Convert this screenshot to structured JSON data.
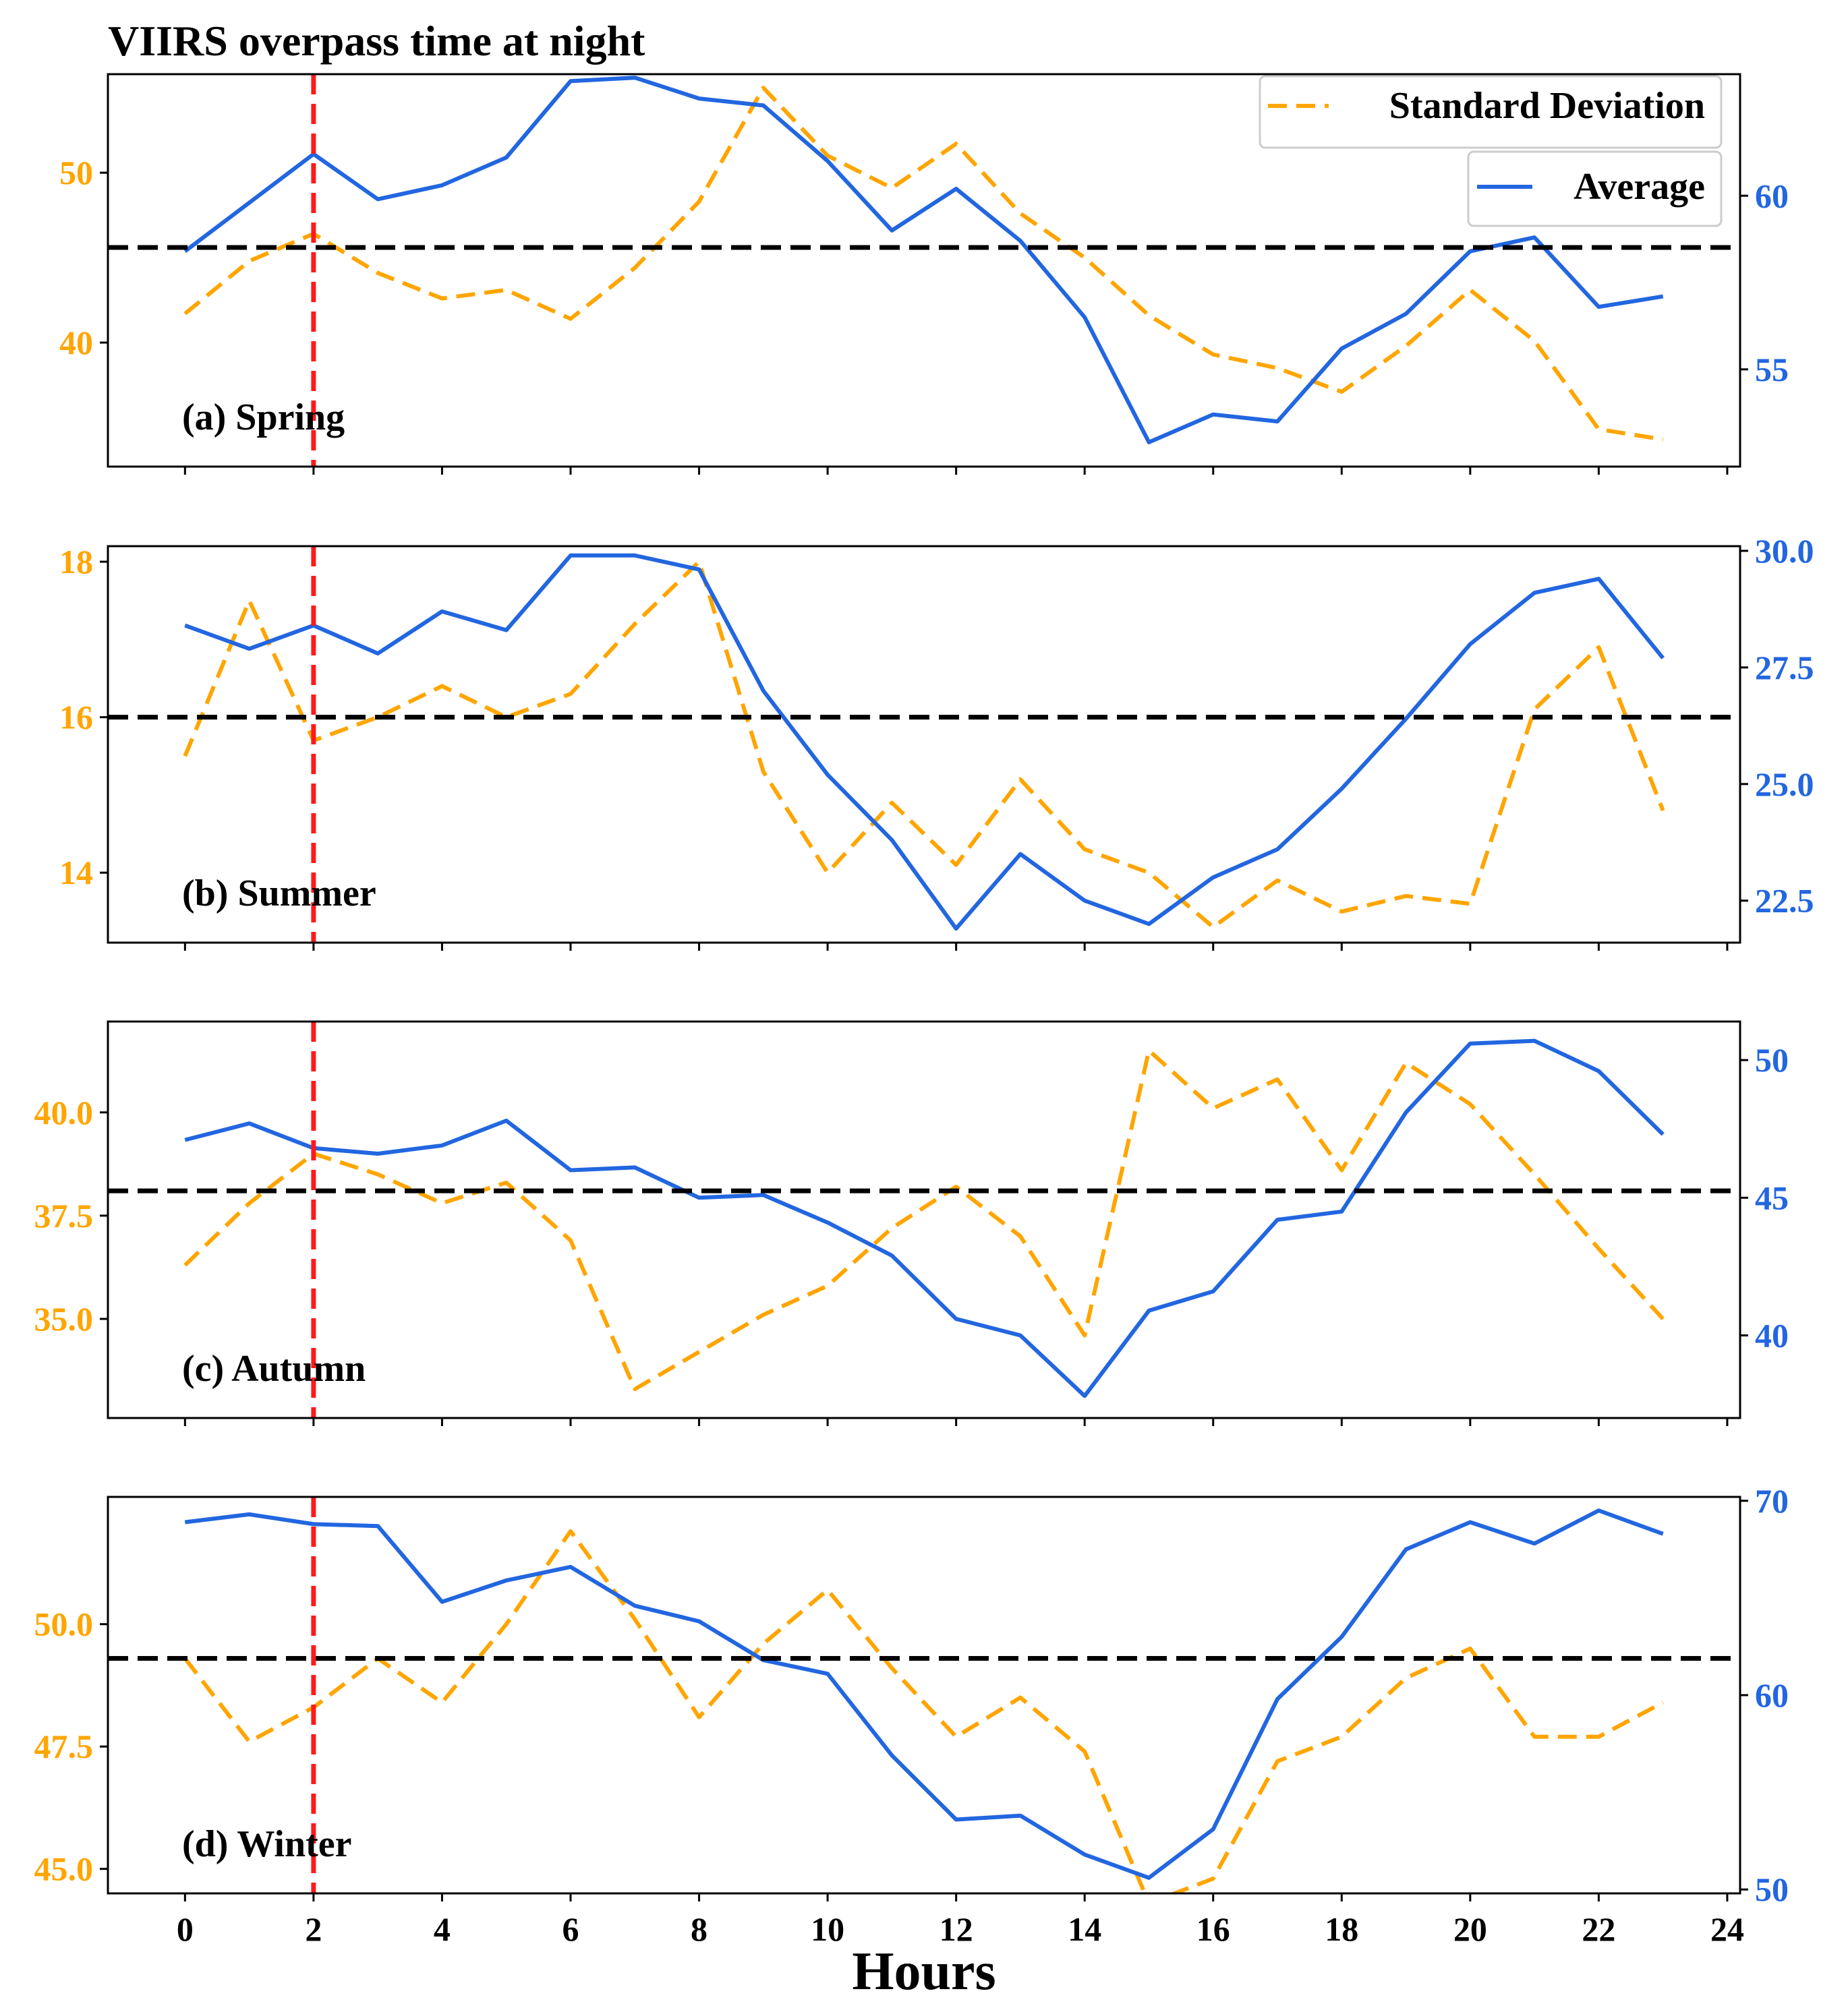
{
  "chart_data": {
    "type": "line",
    "title": "VIIRS overpass time at night",
    "xlabel": "Hours",
    "x": [
      0,
      1,
      2,
      3,
      4,
      5,
      6,
      7,
      8,
      9,
      10,
      11,
      12,
      13,
      14,
      15,
      16,
      17,
      18,
      19,
      20,
      21,
      22,
      23
    ],
    "x_ticks": [
      0,
      2,
      4,
      6,
      8,
      10,
      12,
      14,
      16,
      18,
      20,
      22,
      24
    ],
    "xlim": [
      -1.2,
      24.2
    ],
    "vertical_marker_x": 2,
    "colors": {
      "std": "#FFA500",
      "avg": "#2266E0",
      "overpass_marker": "#FF1A1A",
      "reference_line": "#000000"
    },
    "legend": {
      "placement": "top-right",
      "entries": [
        "Standard Deviation",
        "Average"
      ]
    },
    "panels": [
      {
        "label": "(a) Spring",
        "left_ylim": [
          32.7,
          55.8
        ],
        "right_ylim": [
          52.2,
          63.5
        ],
        "left_ticks": [
          40,
          50
        ],
        "right_ticks": [
          55,
          60
        ],
        "reference_y_left": 45.6,
        "series": [
          {
            "name": "Standard Deviation",
            "axis": "left",
            "style": "dashed",
            "values": [
              41.7,
              44.8,
              46.4,
              44.1,
              42.6,
              43.1,
              41.4,
              44.4,
              48.3,
              55.0,
              51.0,
              49.1,
              51.7,
              47.6,
              45.0,
              41.6,
              39.3,
              38.5,
              37.1,
              39.8,
              43.1,
              40.1,
              34.9,
              34.3
            ],
            "legend_label": "Standard Deviation"
          },
          {
            "name": "Average",
            "axis": "right",
            "style": "solid",
            "values": [
              58.4,
              59.8,
              61.2,
              59.9,
              60.3,
              61.1,
              63.3,
              63.4,
              62.8,
              62.6,
              61.0,
              59.0,
              60.2,
              58.7,
              56.5,
              52.9,
              53.7,
              53.5,
              55.6,
              56.6,
              58.4,
              58.8,
              56.8,
              57.1
            ],
            "legend_label": "Average"
          }
        ]
      },
      {
        "label": "(b) Summer",
        "left_ylim": [
          13.1,
          18.2
        ],
        "right_ylim": [
          21.6,
          30.1
        ],
        "left_ticks": [
          14,
          16,
          18
        ],
        "right_ticks": [
          22.5,
          25.0,
          27.5,
          30.0
        ],
        "right_tick_labels": [
          "22.5",
          "25.0",
          "27.5",
          "30.0"
        ],
        "reference_y_left": 16.0,
        "series": [
          {
            "name": "Standard Deviation",
            "axis": "left",
            "style": "dashed",
            "values": [
              15.5,
              17.5,
              15.7,
              16.0,
              16.4,
              16.0,
              16.3,
              17.2,
              18.0,
              15.3,
              14.0,
              14.9,
              14.1,
              15.2,
              14.3,
              14.0,
              13.3,
              13.9,
              13.5,
              13.7,
              13.6,
              16.1,
              16.9,
              14.8
            ],
            "legend_label": "Standard Deviation"
          },
          {
            "name": "Average",
            "axis": "right",
            "style": "solid",
            "values": [
              28.4,
              27.9,
              28.4,
              27.8,
              28.7,
              28.3,
              29.9,
              29.9,
              29.6,
              27.0,
              25.2,
              23.8,
              21.9,
              23.5,
              22.5,
              22.0,
              23.0,
              23.6,
              24.9,
              26.4,
              28.0,
              29.1,
              29.4,
              27.7
            ],
            "legend_label": "Average"
          }
        ]
      },
      {
        "label": "(c) Autumn",
        "left_ylim": [
          32.6,
          42.2
        ],
        "right_ylim": [
          37.0,
          51.4
        ],
        "left_ticks": [
          35.0,
          37.5,
          40.0
        ],
        "left_tick_labels": [
          "35.0",
          "37.5",
          "40.0"
        ],
        "right_ticks": [
          40,
          45,
          50
        ],
        "reference_y_left": 38.1,
        "series": [
          {
            "name": "Standard Deviation",
            "axis": "left",
            "style": "dashed",
            "values": [
              36.3,
              37.8,
              39.0,
              38.5,
              37.8,
              38.3,
              36.9,
              33.3,
              34.2,
              35.1,
              35.8,
              37.2,
              38.2,
              37.0,
              34.6,
              41.5,
              40.1,
              40.8,
              38.6,
              41.2,
              40.2,
              38.5,
              36.7,
              35.0
            ],
            "legend_label": "Standard Deviation"
          },
          {
            "name": "Average",
            "axis": "right",
            "style": "solid",
            "values": [
              47.1,
              47.7,
              46.8,
              46.6,
              46.9,
              47.8,
              46.0,
              46.1,
              45.0,
              45.1,
              44.1,
              42.9,
              40.6,
              40.0,
              37.8,
              40.9,
              41.6,
              44.2,
              44.5,
              48.1,
              50.6,
              50.7,
              49.6,
              47.3
            ],
            "legend_label": "Average"
          }
        ]
      },
      {
        "label": "(d) Winter",
        "left_ylim": [
          44.5,
          52.6
        ],
        "right_ylim": [
          49.8,
          70.2
        ],
        "left_ticks": [
          45.0,
          47.5,
          50.0
        ],
        "left_tick_labels": [
          "45.0",
          "47.5",
          "50.0"
        ],
        "right_ticks": [
          50,
          60,
          70
        ],
        "reference_y_left": 49.3,
        "series": [
          {
            "name": "Standard Deviation",
            "axis": "left",
            "style": "dashed",
            "values": [
              49.3,
              47.6,
              48.3,
              49.3,
              48.4,
              50.0,
              51.9,
              50.1,
              48.1,
              49.6,
              50.7,
              49.1,
              47.7,
              48.5,
              47.4,
              44.3,
              44.8,
              47.2,
              47.7,
              48.9,
              49.5,
              47.7,
              47.7,
              48.4
            ],
            "legend_label": "Standard Deviation"
          },
          {
            "name": "Average",
            "axis": "right",
            "style": "solid",
            "values": [
              68.9,
              69.3,
              68.8,
              68.7,
              64.8,
              65.9,
              66.6,
              64.6,
              63.8,
              61.8,
              61.1,
              56.9,
              53.6,
              53.8,
              51.8,
              50.6,
              53.1,
              59.8,
              63.0,
              67.5,
              68.9,
              67.8,
              69.5,
              68.3
            ],
            "legend_label": "Average"
          }
        ]
      }
    ]
  }
}
